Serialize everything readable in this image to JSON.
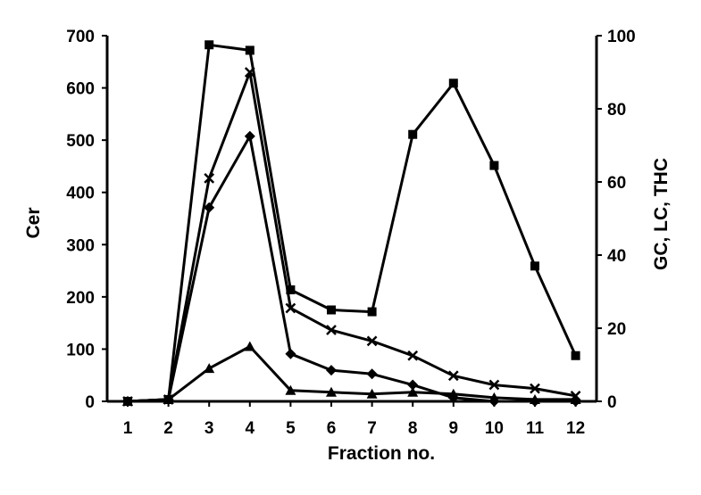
{
  "chart_data": {
    "type": "line",
    "title": "",
    "xlabel": "Fraction no.",
    "ylabel_left": "Cer",
    "ylabel_right": "GC, LC, THC",
    "x": [
      1,
      2,
      3,
      4,
      5,
      6,
      7,
      8,
      9,
      10,
      11,
      12
    ],
    "xlim": [
      1,
      12
    ],
    "ylim_left": [
      0,
      700
    ],
    "ylim_right": [
      0,
      100
    ],
    "yticks_left": [
      0,
      100,
      200,
      300,
      400,
      500,
      600,
      700
    ],
    "yticks_right": [
      0,
      20,
      40,
      60,
      80,
      100
    ],
    "grid": false,
    "legend": "none",
    "series": [
      {
        "marker": "square",
        "axis": "right",
        "values": [
          0,
          0.5,
          97.5,
          96,
          30.5,
          25,
          24.5,
          73,
          87,
          64.5,
          37,
          12.5
        ]
      },
      {
        "marker": "cross",
        "axis": "right",
        "values": [
          0,
          0.5,
          61,
          90,
          25.5,
          19.5,
          16.5,
          12.5,
          7,
          4.5,
          3.5,
          1.5
        ]
      },
      {
        "marker": "diamond",
        "axis": "right",
        "values": [
          0,
          0.5,
          53,
          72.5,
          13,
          8.5,
          7.5,
          4.5,
          1,
          0,
          0,
          0
        ]
      },
      {
        "marker": "triangle",
        "axis": "right",
        "values": [
          0,
          0.5,
          9,
          15,
          3,
          2.5,
          2,
          2.5,
          2,
          1,
          0.5,
          0.5
        ]
      }
    ]
  }
}
